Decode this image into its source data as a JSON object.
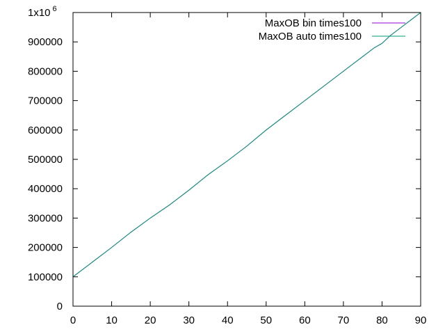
{
  "chart_data": {
    "type": "line",
    "title": "",
    "xlabel": "",
    "ylabel": "",
    "xlim": [
      0,
      90
    ],
    "ylim": [
      0,
      1000000
    ],
    "x_ticks": [
      "0",
      "10",
      "20",
      "30",
      "40",
      "50",
      "60",
      "70",
      "80",
      "90"
    ],
    "y_ticks": [
      "0",
      "100000",
      "200000",
      "300000",
      "400000",
      "500000",
      "600000",
      "700000",
      "800000",
      "900000"
    ],
    "y_top_tick": {
      "base": "1x10",
      "exponent": "6"
    },
    "grid": false,
    "legend_position": "top-right",
    "series": [
      {
        "name": "MaxOB bin times100",
        "color": "#9400d3",
        "x": [
          0,
          5,
          10,
          15,
          20,
          25,
          30,
          35,
          40,
          45,
          50,
          55,
          60,
          65,
          70,
          75,
          78,
          80,
          82,
          85,
          88,
          90
        ],
        "y": [
          100000,
          150000,
          200000,
          252000,
          300000,
          345000,
          395000,
          448000,
          495000,
          545000,
          600000,
          650000,
          700000,
          750000,
          800000,
          850000,
          880000,
          895000,
          920000,
          950000,
          980000,
          1000000
        ]
      },
      {
        "name": "MaxOB auto times100",
        "color": "#009e73",
        "x": [
          0,
          5,
          10,
          15,
          20,
          25,
          30,
          35,
          40,
          45,
          50,
          55,
          60,
          65,
          70,
          75,
          78,
          80,
          82,
          85,
          88,
          90
        ],
        "y": [
          100000,
          150000,
          200000,
          252000,
          300000,
          345000,
          395000,
          448000,
          495000,
          545000,
          600000,
          650000,
          700000,
          750000,
          800000,
          850000,
          880000,
          895000,
          920000,
          950000,
          980000,
          1000000
        ]
      }
    ]
  }
}
